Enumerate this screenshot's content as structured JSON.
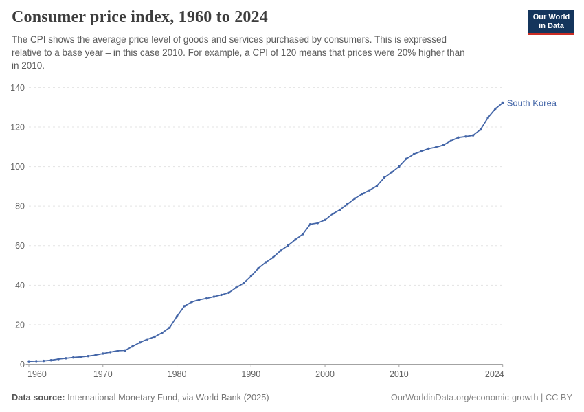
{
  "header": {
    "title": "Consumer price index, 1960 to 2024",
    "subtitle_lines": {
      "0": "The CPI shows the average price level of goods and services purchased by consumers. This is expressed",
      "1": "relative to a base year – in this case 2010. For example, a CPI of 120 means that prices were 20% higher than",
      "2": "in 2010."
    },
    "logo": {
      "line1": "Our World",
      "line2": "in Data"
    }
  },
  "chart_data": {
    "type": "line",
    "title": "Consumer price index, 1960 to 2024",
    "entity_label": "South Korea",
    "grid": "horizontal-dashed",
    "legend_position": "end-of-line-label",
    "xlim": [
      1960,
      2024
    ],
    "ylim": [
      0,
      140
    ],
    "xticks": [
      1960,
      1970,
      1980,
      1990,
      2000,
      2010,
      2024
    ],
    "yticks": [
      0,
      20,
      40,
      60,
      80,
      100,
      120,
      140
    ],
    "x": [
      1960,
      1961,
      1962,
      1963,
      1964,
      1965,
      1966,
      1967,
      1968,
      1969,
      1970,
      1971,
      1972,
      1973,
      1974,
      1975,
      1976,
      1977,
      1978,
      1979,
      1980,
      1981,
      1982,
      1983,
      1984,
      1985,
      1986,
      1987,
      1988,
      1989,
      1990,
      1991,
      1992,
      1993,
      1994,
      1995,
      1996,
      1997,
      1998,
      1999,
      2000,
      2001,
      2002,
      2003,
      2004,
      2005,
      2006,
      2007,
      2008,
      2009,
      2010,
      2011,
      2012,
      2013,
      2014,
      2015,
      2016,
      2017,
      2018,
      2019,
      2020,
      2021,
      2022,
      2023,
      2024
    ],
    "series": [
      {
        "name": "South Korea",
        "color": "#4466a8",
        "values": [
          1.5,
          1.6,
          1.7,
          2.0,
          2.6,
          3.0,
          3.4,
          3.7,
          4.1,
          4.6,
          5.4,
          6.1,
          6.8,
          7.0,
          9.0,
          11.0,
          12.6,
          13.9,
          15.9,
          18.5,
          24.2,
          29.4,
          31.5,
          32.6,
          33.3,
          34.2,
          35.1,
          36.2,
          38.8,
          41.0,
          44.5,
          48.6,
          51.6,
          54.1,
          57.5,
          60.1,
          63.1,
          65.8,
          70.8,
          71.4,
          73.0,
          76.0,
          78.1,
          80.9,
          83.8,
          86.1,
          88.0,
          90.2,
          94.4,
          97.1,
          100.0,
          104.0,
          106.3,
          107.7,
          109.1,
          109.8,
          110.9,
          113.0,
          114.7,
          115.2,
          115.8,
          118.7,
          124.7,
          129.2,
          132.2
        ]
      }
    ]
  },
  "footer": {
    "source_label": "Data source:",
    "source_text": " International Monetary Fund, via World Bank (2025)",
    "link_text": "OurWorldinData.org/economic-growth | CC BY"
  },
  "colors": {
    "line": "#4466a8",
    "grid": "#e3e3e3",
    "axis": "#a3a3a3",
    "tick_text": "#636363",
    "title_text": "#3d3d3d",
    "subtitle_text": "#5b5b5b",
    "logo_bg": "#14355c",
    "logo_stripe": "#cb2d24"
  }
}
